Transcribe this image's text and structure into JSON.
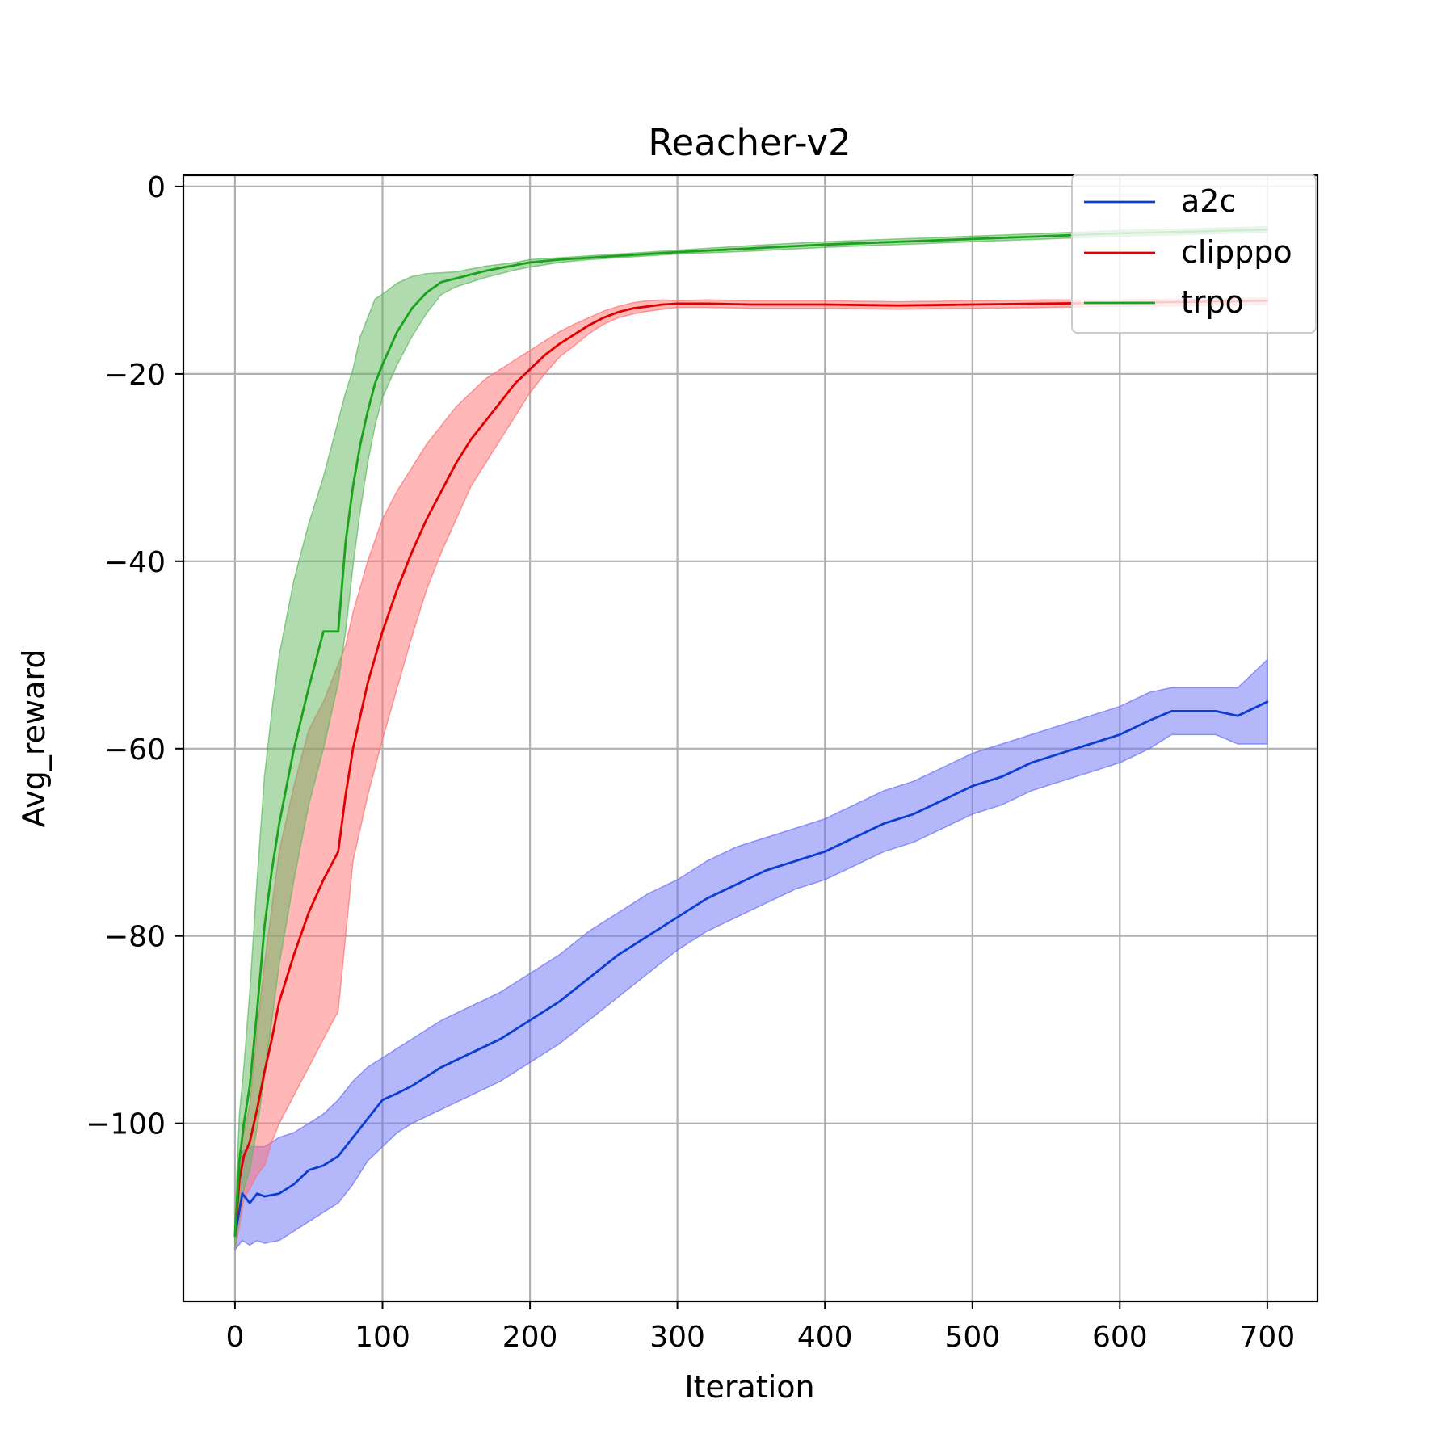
{
  "chart_data": {
    "type": "line",
    "title": "Reacher-v2",
    "xlabel": "Iteration",
    "ylabel": "Avg_reward",
    "xlim": [
      -35,
      734
    ],
    "ylim": [
      -119,
      1.2
    ],
    "xticks": [
      0,
      100,
      200,
      300,
      400,
      500,
      600,
      700
    ],
    "xtick_labels": [
      "0",
      "100",
      "200",
      "300",
      "400",
      "500",
      "600",
      "700"
    ],
    "yticks": [
      0,
      -20,
      -40,
      -60,
      -80,
      -100
    ],
    "ytick_labels": [
      "0",
      "−20",
      "−40",
      "−60",
      "−80",
      "−100"
    ],
    "grid": true,
    "legend_position": "upper right",
    "series": [
      {
        "name": "a2c",
        "color": "#0b3fd4",
        "band_color": "#6a6ff5",
        "x": [
          0,
          5,
          10,
          15,
          20,
          30,
          40,
          50,
          60,
          70,
          80,
          90,
          100,
          110,
          120,
          140,
          160,
          180,
          200,
          220,
          240,
          260,
          280,
          300,
          320,
          340,
          360,
          380,
          400,
          420,
          440,
          460,
          480,
          500,
          520,
          540,
          560,
          580,
          600,
          620,
          635,
          650,
          665,
          680,
          700
        ],
        "y": [
          -112,
          -107.5,
          -108.5,
          -107.5,
          -107.8,
          -107.5,
          -106.5,
          -105,
          -104.5,
          -103.5,
          -101.5,
          -99.5,
          -97.5,
          -96.8,
          -96,
          -94,
          -92.5,
          -91,
          -89,
          -87,
          -84.5,
          -82,
          -80,
          -78,
          -76,
          -74.5,
          -73,
          -72,
          -71,
          -69.5,
          -68,
          -67,
          -65.5,
          -64,
          -63,
          -61.5,
          -60.5,
          -59.5,
          -58.5,
          -57,
          -56,
          -56,
          -56,
          -56.5,
          -55
        ],
        "upper": [
          -110,
          -103,
          -102.5,
          -102.5,
          -102.5,
          -101.5,
          -101,
          -100,
          -99,
          -97.5,
          -95.5,
          -94,
          -93,
          -92,
          -91,
          -89,
          -87.5,
          -86,
          -84,
          -82,
          -79.5,
          -77.5,
          -75.5,
          -74,
          -72,
          -70.5,
          -69.5,
          -68.5,
          -67.5,
          -66,
          -64.5,
          -63.5,
          -62,
          -60.5,
          -59.5,
          -58.5,
          -57.5,
          -56.5,
          -55.5,
          -54,
          -53.5,
          -53.5,
          -53.5,
          -53.5,
          -50.5
        ],
        "lower": [
          -113.5,
          -112.5,
          -113,
          -112.5,
          -112.8,
          -112.5,
          -111.5,
          -110.5,
          -109.5,
          -108.5,
          -106.5,
          -104,
          -102.5,
          -101,
          -100,
          -98.5,
          -97,
          -95.5,
          -93.5,
          -91.5,
          -89,
          -86.5,
          -84,
          -81.5,
          -79.5,
          -78,
          -76.5,
          -75,
          -74,
          -72.5,
          -71,
          -70,
          -68.5,
          -67,
          -66,
          -64.5,
          -63.5,
          -62.5,
          -61.5,
          -60,
          -58.5,
          -58.5,
          -58.5,
          -59.5,
          -59.5
        ]
      },
      {
        "name": "clipppo",
        "color": "#e00000",
        "band_color": "#ff7070",
        "x": [
          0,
          3,
          6,
          10,
          15,
          20,
          25,
          30,
          40,
          50,
          60,
          70,
          75,
          80,
          90,
          100,
          110,
          120,
          130,
          140,
          150,
          160,
          170,
          180,
          190,
          200,
          210,
          220,
          230,
          240,
          250,
          260,
          270,
          280,
          290,
          300,
          320,
          350,
          400,
          450,
          500,
          550,
          600,
          650,
          700
        ],
        "y": [
          -112,
          -106,
          -103.5,
          -102,
          -98.5,
          -94.5,
          -91,
          -87,
          -82,
          -77.5,
          -74,
          -71,
          -65,
          -60,
          -53,
          -47.5,
          -43,
          -39,
          -35.5,
          -32.5,
          -29.5,
          -27,
          -25,
          -23,
          -21,
          -19.5,
          -18,
          -16.8,
          -15.8,
          -14.8,
          -14,
          -13.4,
          -13,
          -12.8,
          -12.6,
          -12.5,
          -12.5,
          -12.6,
          -12.6,
          -12.7,
          -12.6,
          -12.5,
          -12.4,
          -12.3,
          -12.2
        ],
        "upper": [
          -110,
          -103,
          -101,
          -98,
          -90,
          -83,
          -77,
          -71,
          -64,
          -58,
          -55,
          -51,
          -49,
          -45.5,
          -40,
          -35.5,
          -32.5,
          -30,
          -27.5,
          -25.5,
          -23.5,
          -22,
          -20.5,
          -19.5,
          -18.5,
          -17.5,
          -16.5,
          -15.5,
          -14.7,
          -14,
          -13.3,
          -12.8,
          -12.4,
          -12.2,
          -12.1,
          -12.2,
          -12.1,
          -12.2,
          -12.2,
          -12.3,
          -12.2,
          -12.1,
          -12.1,
          -12.0,
          -11.9
        ],
        "lower": [
          -113.5,
          -111,
          -108,
          -107,
          -105.5,
          -104.5,
          -102,
          -100,
          -97,
          -94,
          -91,
          -88,
          -80,
          -72,
          -65,
          -59,
          -53.5,
          -48,
          -43,
          -39,
          -35.5,
          -32,
          -29.5,
          -27,
          -24.5,
          -22,
          -20,
          -18.2,
          -17,
          -15.7,
          -14.7,
          -14,
          -13.6,
          -13.3,
          -13.1,
          -12.9,
          -12.9,
          -13.0,
          -13.0,
          -13.1,
          -13.0,
          -12.9,
          -12.8,
          -12.7,
          -12.6
        ]
      },
      {
        "name": "trpo",
        "color": "#1aa31a",
        "band_color": "#5fb85f",
        "x": [
          0,
          3,
          6,
          10,
          15,
          20,
          25,
          30,
          40,
          50,
          60,
          70,
          75,
          80,
          85,
          90,
          95,
          100,
          110,
          120,
          130,
          140,
          150,
          160,
          170,
          180,
          190,
          200,
          220,
          240,
          260,
          280,
          300,
          350,
          400,
          450,
          500,
          550,
          600,
          650,
          700
        ],
        "y": [
          -112,
          -104,
          -100,
          -96,
          -88,
          -79,
          -73,
          -68,
          -60,
          -53.5,
          -47.5,
          -47.5,
          -38,
          -32,
          -27.5,
          -24,
          -21,
          -19,
          -15.5,
          -13,
          -11.3,
          -10.2,
          -9.8,
          -9.4,
          -9.0,
          -8.7,
          -8.4,
          -8.1,
          -7.8,
          -7.6,
          -7.4,
          -7.2,
          -7.0,
          -6.6,
          -6.2,
          -5.9,
          -5.6,
          -5.3,
          -5.0,
          -4.8,
          -4.6
        ],
        "upper": [
          -110,
          -99,
          -94,
          -86,
          -74,
          -63,
          -56,
          -50,
          -42,
          -36,
          -31,
          -25,
          -22,
          -19.5,
          -16,
          -14,
          -12,
          -11.5,
          -10.3,
          -9.6,
          -9.3,
          -9.2,
          -9.1,
          -8.8,
          -8.5,
          -8.3,
          -8.1,
          -7.8,
          -7.6,
          -7.4,
          -7.2,
          -7.0,
          -6.8,
          -6.3,
          -5.9,
          -5.6,
          -5.3,
          -5.0,
          -4.7,
          -4.5,
          -4.3
        ],
        "lower": [
          -113.5,
          -110,
          -107,
          -105,
          -100.5,
          -95,
          -89,
          -83,
          -74,
          -66,
          -60,
          -53,
          -47.5,
          -40.5,
          -34.5,
          -29.5,
          -25.5,
          -22.5,
          -19,
          -16,
          -13.5,
          -11.5,
          -10.7,
          -10.2,
          -9.7,
          -9.3,
          -8.9,
          -8.6,
          -8.1,
          -7.8,
          -7.6,
          -7.4,
          -7.2,
          -6.9,
          -6.5,
          -6.2,
          -5.9,
          -5.6,
          -5.3,
          -5.1,
          -4.9
        ]
      }
    ]
  }
}
